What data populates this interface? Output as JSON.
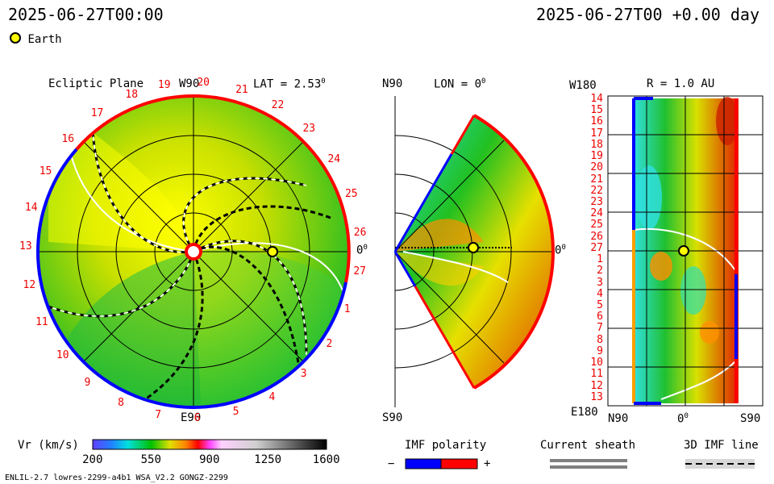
{
  "header": {
    "datetime_left": "2025-06-27T00:00",
    "datetime_right": "2025-06-27T00 +0.00 day",
    "earth_legend": "Earth"
  },
  "colors": {
    "earth": "#ffff00",
    "imf_neg": "#0000ff",
    "imf_pos": "#ff0000",
    "sheath": "#808080"
  },
  "panel_left": {
    "title": "Ecliptic Plane",
    "top_label": "W90",
    "lat_label": "LAT = 2.53",
    "lat_deg": "0",
    "right_label": "0",
    "right_deg": "0",
    "bottom_label": "E90",
    "day_ticks": [
      "19",
      "20",
      "21",
      "22",
      "23",
      "24",
      "25",
      "26",
      "27",
      "1",
      "2",
      "3",
      "4",
      "5",
      "6",
      "7",
      "8",
      "9",
      "10",
      "11",
      "12",
      "13",
      "14",
      "15",
      "16",
      "17",
      "18"
    ]
  },
  "panel_middle": {
    "top_left": "N90",
    "lon_label": "LON = 0",
    "lon_deg": "0",
    "right_label": "0",
    "right_deg": "0",
    "bottom_left": "S90"
  },
  "panel_right": {
    "top_left": "W180",
    "r_label": "R = 1.0 AU",
    "bottom_left": "E180",
    "x_labels": [
      "N90",
      "0",
      "S90"
    ],
    "x_zero_deg": "0",
    "y_labels": [
      "14",
      "15",
      "16",
      "17",
      "18",
      "19",
      "20",
      "21",
      "22",
      "23",
      "24",
      "25",
      "26",
      "27",
      "1",
      "2",
      "3",
      "4",
      "5",
      "6",
      "7",
      "8",
      "9",
      "10",
      "11",
      "12",
      "13"
    ]
  },
  "colorbar": {
    "title": "Vr (km/s)",
    "ticks": [
      "200",
      "550",
      "900",
      "1250",
      "1600"
    ]
  },
  "legend_imf": {
    "title": "IMF polarity",
    "minus": "−",
    "plus": "+"
  },
  "legend_sheath": {
    "title": "Current sheath"
  },
  "legend_3d": {
    "title": "3D IMF line"
  },
  "footer": {
    "model_info": "ENLIL-2.7 lowres-2299-a4b1 WSA_V2.2 GONGZ-2299"
  }
}
